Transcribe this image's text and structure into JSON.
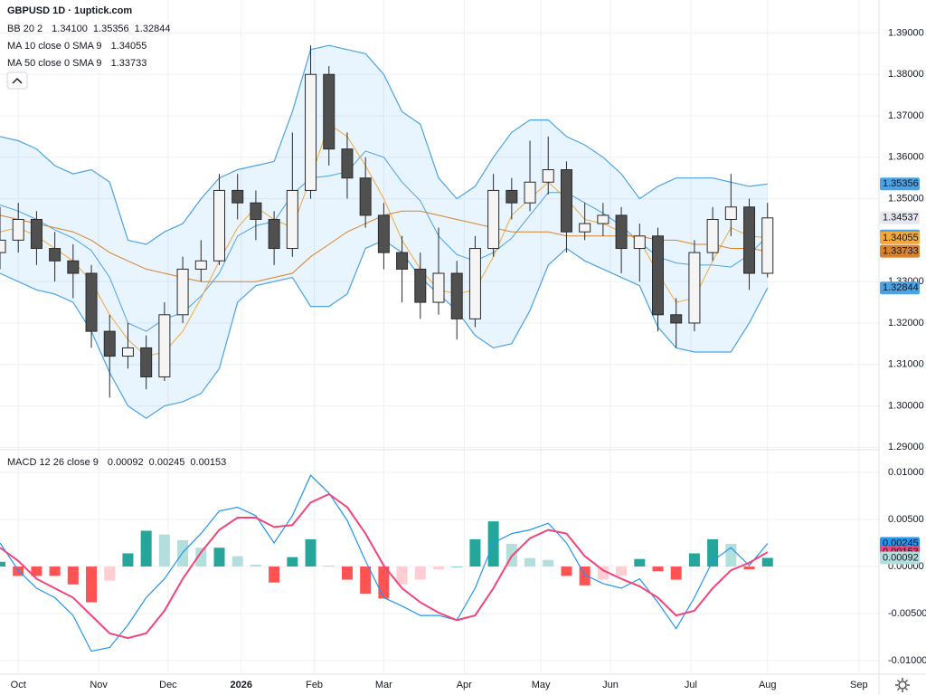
{
  "chart_data": {
    "type": "candlestick",
    "title": "GBPUSD 1D · 1uptick.com",
    "x": [
      0,
      5,
      10,
      15,
      20,
      25,
      30,
      35,
      40,
      45,
      50,
      55,
      60,
      65,
      70,
      75,
      80,
      85,
      90,
      95,
      100,
      105,
      110,
      115,
      120,
      125,
      130,
      135,
      140,
      145,
      150,
      155,
      160,
      165,
      170,
      175,
      180,
      185,
      190,
      195,
      200,
      205,
      210
    ],
    "ohlc": [
      [
        1.337,
        1.348,
        1.333,
        1.34
      ],
      [
        1.34,
        1.349,
        1.337,
        1.345
      ],
      [
        1.345,
        1.347,
        1.334,
        1.338
      ],
      [
        1.338,
        1.342,
        1.33,
        1.335
      ],
      [
        1.335,
        1.339,
        1.326,
        1.332
      ],
      [
        1.332,
        1.334,
        1.314,
        1.318
      ],
      [
        1.318,
        1.322,
        1.302,
        1.312
      ],
      [
        1.312,
        1.32,
        1.309,
        1.314
      ],
      [
        1.314,
        1.317,
        1.304,
        1.307
      ],
      [
        1.307,
        1.325,
        1.306,
        1.322
      ],
      [
        1.322,
        1.336,
        1.32,
        1.333
      ],
      [
        1.333,
        1.34,
        1.33,
        1.335
      ],
      [
        1.335,
        1.356,
        1.334,
        1.352
      ],
      [
        1.352,
        1.356,
        1.345,
        1.349
      ],
      [
        1.349,
        1.352,
        1.34,
        1.345
      ],
      [
        1.345,
        1.347,
        1.334,
        1.338
      ],
      [
        1.338,
        1.366,
        1.336,
        1.352
      ],
      [
        1.352,
        1.387,
        1.35,
        1.38
      ],
      [
        1.38,
        1.382,
        1.358,
        1.362
      ],
      [
        1.362,
        1.366,
        1.35,
        1.355
      ],
      [
        1.355,
        1.36,
        1.343,
        1.346
      ],
      [
        1.346,
        1.349,
        1.333,
        1.337
      ],
      [
        1.337,
        1.341,
        1.325,
        1.333
      ],
      [
        1.333,
        1.337,
        1.321,
        1.325
      ],
      [
        1.325,
        1.343,
        1.322,
        1.332
      ],
      [
        1.332,
        1.335,
        1.316,
        1.321
      ],
      [
        1.321,
        1.341,
        1.319,
        1.338
      ],
      [
        1.338,
        1.356,
        1.336,
        1.352
      ],
      [
        1.352,
        1.355,
        1.345,
        1.349
      ],
      [
        1.349,
        1.364,
        1.347,
        1.354
      ],
      [
        1.354,
        1.365,
        1.351,
        1.357
      ],
      [
        1.357,
        1.359,
        1.337,
        1.342
      ],
      [
        1.342,
        1.349,
        1.34,
        1.344
      ],
      [
        1.344,
        1.349,
        1.341,
        1.346
      ],
      [
        1.346,
        1.348,
        1.332,
        1.338
      ],
      [
        1.338,
        1.344,
        1.33,
        1.341
      ],
      [
        1.341,
        1.343,
        1.318,
        1.322
      ],
      [
        1.322,
        1.326,
        1.314,
        1.32
      ],
      [
        1.32,
        1.34,
        1.318,
        1.337
      ],
      [
        1.337,
        1.348,
        1.335,
        1.345
      ],
      [
        1.345,
        1.356,
        1.341,
        1.348
      ],
      [
        1.348,
        1.35,
        1.328,
        1.332
      ],
      [
        1.332,
        1.349,
        1.331,
        1.34537
      ]
    ],
    "up_color": "#f5f5f5",
    "down_color": "#505050",
    "last_label": "1.34537",
    "xlim": [
      0,
      240
    ],
    "xticks": [
      {
        "value": 5,
        "label": "Oct"
      },
      {
        "value": 27,
        "label": "Nov"
      },
      {
        "value": 46,
        "label": "Dec"
      },
      {
        "value": 66,
        "label": "2026"
      },
      {
        "value": 86,
        "label": "Feb"
      },
      {
        "value": 105,
        "label": "Mar"
      },
      {
        "value": 127,
        "label": "Apr"
      },
      {
        "value": 148,
        "label": "May"
      },
      {
        "value": 167,
        "label": "Jun"
      },
      {
        "value": 189,
        "label": "Jul"
      },
      {
        "value": 210,
        "label": "Aug"
      },
      {
        "value": 235,
        "label": "Sep"
      }
    ],
    "ylim": [
      1.28985,
      1.39796
    ],
    "yticks": [
      {
        "value": 1.39,
        "label": "1.39000"
      },
      {
        "value": 1.38,
        "label": "1.38000"
      },
      {
        "value": 1.37,
        "label": "1.37000"
      },
      {
        "value": 1.36,
        "label": "1.36000"
      },
      {
        "value": 1.35,
        "label": "1.35000"
      },
      {
        "value": 1.33,
        "label": "1.33000"
      },
      {
        "value": 1.32,
        "label": "1.32000"
      },
      {
        "value": 1.31,
        "label": "1.31000"
      },
      {
        "value": 1.3,
        "label": "1.30000"
      },
      {
        "value": 1.29,
        "label": "1.29000"
      }
    ],
    "grid": true,
    "bollinger": {
      "name": "BB 20 2",
      "color": "#4ba3e3",
      "basis": [
        1.3485,
        1.347,
        1.345,
        1.3425,
        1.3405,
        1.3375,
        1.331,
        1.32,
        1.318,
        1.321,
        1.3225,
        1.3265,
        1.332,
        1.341,
        1.3435,
        1.3445,
        1.351,
        1.355,
        1.3555,
        1.3565,
        1.3615,
        1.36,
        1.354,
        1.3495,
        1.341,
        1.3365,
        1.335,
        1.337,
        1.3405,
        1.346,
        1.3515,
        1.3515,
        1.349,
        1.3465,
        1.3435,
        1.3395,
        1.336,
        1.3345,
        1.334,
        1.334,
        1.3335,
        1.3365,
        1.341
      ],
      "upper": [
        1.365,
        1.364,
        1.362,
        1.358,
        1.356,
        1.357,
        1.354,
        1.34,
        1.339,
        1.342,
        1.344,
        1.35,
        1.355,
        1.357,
        1.358,
        1.359,
        1.371,
        1.386,
        1.387,
        1.386,
        1.385,
        1.38,
        1.371,
        1.368,
        1.355,
        1.35,
        1.353,
        1.36,
        1.366,
        1.369,
        1.369,
        1.365,
        1.363,
        1.36,
        1.356,
        1.35,
        1.353,
        1.355,
        1.355,
        1.355,
        1.354,
        1.353,
        1.35356
      ],
      "lower": [
        1.332,
        1.33,
        1.328,
        1.327,
        1.325,
        1.318,
        1.308,
        1.3,
        1.297,
        1.3,
        1.301,
        1.303,
        1.309,
        1.325,
        1.329,
        1.33,
        1.331,
        1.324,
        1.324,
        1.327,
        1.338,
        1.34,
        1.337,
        1.331,
        1.327,
        1.323,
        1.317,
        1.314,
        1.315,
        1.323,
        1.334,
        1.338,
        1.335,
        1.333,
        1.331,
        1.329,
        1.319,
        1.314,
        1.313,
        1.313,
        1.313,
        1.32,
        1.32844
      ],
      "labels": [
        "1.34100",
        "1.35356",
        "1.32844"
      ]
    },
    "moving_averages": [
      {
        "name": "MA 10 close 0 SMA 9",
        "color": "#f2a93b",
        "label": "1.34055",
        "values": [
          1.342,
          1.343,
          1.341,
          1.338,
          1.335,
          1.33,
          1.322,
          1.316,
          1.312,
          1.313,
          1.318,
          1.326,
          1.335,
          1.343,
          1.348,
          1.345,
          1.343,
          1.355,
          1.368,
          1.365,
          1.358,
          1.35,
          1.34,
          1.333,
          1.328,
          1.327,
          1.328,
          1.336,
          1.346,
          1.35,
          1.354,
          1.35,
          1.345,
          1.344,
          1.342,
          1.34,
          1.332,
          1.325,
          1.326,
          1.335,
          1.343,
          1.341,
          1.34055
        ]
      },
      {
        "name": "MA 50 close 0 SMA 9",
        "color": "#d9822b",
        "label": "1.33733",
        "values": [
          1.346,
          1.345,
          1.344,
          1.343,
          1.342,
          1.34,
          1.337,
          1.335,
          1.333,
          1.332,
          1.331,
          1.33,
          1.33,
          1.33,
          1.33,
          1.331,
          1.332,
          1.336,
          1.339,
          1.342,
          1.344,
          1.346,
          1.347,
          1.347,
          1.346,
          1.345,
          1.344,
          1.343,
          1.342,
          1.342,
          1.342,
          1.341,
          1.341,
          1.341,
          1.341,
          1.341,
          1.34,
          1.34,
          1.339,
          1.339,
          1.338,
          1.338,
          1.33733
        ]
      }
    ],
    "macd": {
      "name": "MACD 12 26 close 9",
      "histogram": [
        0.0005,
        -0.001,
        -0.001,
        -0.001,
        -0.0019,
        -0.0038,
        -0.0015,
        0.0014,
        0.0038,
        0.0034,
        0.0028,
        0.002,
        0.002,
        0.0011,
        0.0002,
        -0.0017,
        0.001,
        0.0029,
        0.0001,
        -0.0014,
        -0.0029,
        -0.0034,
        -0.0019,
        -0.0014,
        -0.0003,
        0.0,
        0.0029,
        0.0048,
        0.0024,
        0.0009,
        0.0007,
        -0.001,
        -0.002,
        -0.0014,
        -0.001,
        0.0008,
        -0.0005,
        -0.0014,
        0.0014,
        0.0029,
        0.0024,
        -0.0003,
        0.00092
      ],
      "macd": [
        0.0025,
        -0.0004,
        -0.0023,
        -0.0033,
        -0.0052,
        -0.009,
        -0.0086,
        -0.0062,
        -0.0033,
        -0.0013,
        0.0015,
        0.0035,
        0.0059,
        0.0063,
        0.0054,
        0.0025,
        0.0054,
        0.0097,
        0.0078,
        0.0049,
        0.0006,
        -0.0033,
        -0.0042,
        -0.0052,
        -0.0052,
        -0.0057,
        -0.0023,
        0.0025,
        0.0035,
        0.0039,
        0.0046,
        0.0025,
        -0.0009,
        -0.0018,
        -0.0023,
        -0.0013,
        -0.0038,
        -0.0066,
        -0.0033,
        0.0006,
        0.002,
        0.0001,
        0.00245
      ],
      "signal": [
        0.002,
        0.0006,
        -0.0013,
        -0.0023,
        -0.0033,
        -0.0052,
        -0.0071,
        -0.0076,
        -0.0071,
        -0.0047,
        -0.0013,
        0.0015,
        0.0039,
        0.0052,
        0.0052,
        0.0042,
        0.0044,
        0.0068,
        0.0077,
        0.0063,
        0.0035,
        0.0001,
        -0.0023,
        -0.0038,
        -0.0049,
        -0.0057,
        -0.0052,
        -0.0023,
        0.0011,
        0.003,
        0.0039,
        0.0035,
        0.0011,
        -0.0004,
        -0.0013,
        -0.0021,
        -0.0033,
        -0.0052,
        -0.0047,
        -0.0023,
        -0.0004,
        0.0004,
        0.00153
      ],
      "labels": [
        "0.00092",
        "0.00245",
        "0.00153"
      ],
      "macd_color": "#2196f3",
      "signal_color": "#f0457a",
      "hist_colors": {
        "up_rising": "#26a69a",
        "up_falling": "#b2dfdb",
        "down_falling": "#ff5252",
        "down_rising": "#ffcdd2"
      },
      "ylim": [
        -0.01144,
        0.01212
      ],
      "yticks": [
        {
          "value": 0.01,
          "label": "0.01000"
        },
        {
          "value": 0.005,
          "label": "0.00500"
        },
        {
          "value": 0,
          "label": "0.00000"
        },
        {
          "value": -0.005,
          "label": "-0.00500"
        },
        {
          "value": -0.01,
          "label": "-0.01000"
        }
      ]
    }
  }
}
